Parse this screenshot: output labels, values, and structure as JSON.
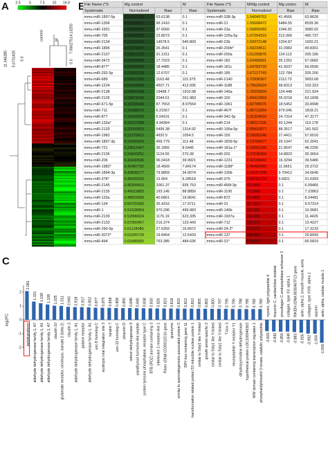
{
  "panel_a": {
    "label": "A",
    "color_scale": [
      "2.5",
      "5",
      "7.5",
      "10",
      "16.9"
    ],
    "columns": [
      "control",
      "M"
    ],
    "column_tree_ticks": [
      "14.13255",
      "7.066275",
      "0.0"
    ],
    "row_tree_ticks": [
      "11.346285",
      "5.6731425",
      "0.0"
    ]
  },
  "panel_b": {
    "label": "B",
    "tables": [
      {
        "header": [
          [
            "File Name (*S",
            "Mg control",
            "M"
          ],
          [
            "Systematic",
            "Normalized",
            "Raw",
            "Raw"
          ]
        ],
        "rows": [
          [
            "mmu-miR-1897-5p",
            "0.00157283",
            "63.6138",
            "0.1"
          ],
          [
            "mmu-miR-1306",
            "0.00104011",
            "96.1416",
            "0.1"
          ],
          [
            "mmu-miR-1931",
            "0.00265545",
            "37.6566",
            "0.1"
          ],
          [
            "mmu-miR-705",
            "0.00420039",
            "23.8073",
            "0.1"
          ],
          [
            "mmu-miR-2134",
            "0.03710143",
            "14578.5",
            "540.809"
          ],
          [
            "mmu-miR-1896",
            "0.00379447",
            "26.3541",
            "0.1"
          ],
          [
            "mmu-miR-2137",
            "0.00321223",
            "31.1311",
            "0.1"
          ],
          [
            "mmu-miR-3472",
            "0.05426085",
            "17.7023",
            "0.1"
          ],
          [
            "mmu-miR-877*",
            "0.05420655",
            "18.4485",
            "0.1"
          ],
          [
            "mmu-miR-292-5p",
            "0.07892218",
            "12.6707",
            "0.1"
          ],
          [
            "mmu-miR-689",
            "0.08501563",
            "1163.48",
            "115.375"
          ],
          [
            "mmu-miR-1224",
            "0.09160664",
            "4507.71",
            "412.935"
          ],
          [
            "mmu-miR-2138",
            "0.09800548",
            "19498.7",
            "1910.98"
          ],
          [
            "mmu-miR-2135",
            "0.09879248",
            "2044.51",
            "201.983"
          ],
          [
            "mmu-miR-671-5p",
            "0.10228349",
            "87.7553",
            "8.97554"
          ],
          [
            "mmu-miR-711",
            "0.16088975",
            "6.21567",
            "0.1"
          ],
          [
            "mmu-miR-877",
            "0.16553555",
            "6.04101",
            "0.1"
          ],
          [
            "mmu-miR-133a*",
            "0.20227999",
            "4.94364",
            "0.1"
          ],
          [
            "mmu-miR-2133",
            "0.20243919",
            "6495.38",
            "1314.92"
          ],
          [
            "mmu-miR-1982",
            "0.21378412",
            "4932.5",
            "1054.5"
          ],
          [
            "mmu-miR-1897-3p",
            "0.22506920",
            "499.779",
            "112.48"
          ],
          [
            "mmu-miR-721",
            "0.23612467",
            "36.1855",
            "8.5445"
          ],
          [
            "mmu-miR-2136",
            "0.24043251",
            "1124.55",
            "270.38"
          ],
          [
            "mmu-miR-206",
            "0.41640696",
            "96.0418",
            "39.9921"
          ],
          [
            "mmu-miR-1982*",
            "0.42487702",
            "18.4569",
            "7.84174"
          ],
          [
            "mmu-miR-1894-3p",
            "0.43696177",
            "79.8859",
            "34.9074"
          ],
          [
            "mmu-miR-378*",
            "0.45042093",
            "13.954",
            "6.28518"
          ],
          [
            "mmu-miR-2145",
            "0.45394416",
            "2061.37",
            "935.753"
          ],
          [
            "mmu-miR-2135",
            "0.46019883",
            "193.145",
            "88.8856"
          ],
          [
            "mmu-miR-133a",
            "0.48822689",
            "40.6861",
            "19.8641"
          ],
          [
            "mmu-miR-134",
            "0.50720393",
            "35.4316",
            "17.9711"
          ],
          [
            "mmu-miR-1",
            "0.51528954",
            "970.296",
            "499.983"
          ],
          [
            "mmu-miR-2139",
            "0.52996024",
            "1176.19",
            "623.335"
          ],
          [
            "mmu-miR-2133",
            "0.57050457",
            "216.374",
            "123.443"
          ],
          [
            "mmu-miR-290-5p",
            "0.61134080",
            "27.6393",
            "16.8972"
          ],
          [
            "mmu-miR-3072*",
            "0.63205729",
            "19.8454",
            "12.5433"
          ],
          [
            "mmu-miR-494",
            "0.63485800",
            "763.385",
            "484.635"
          ]
        ]
      },
      {
        "header": [
          [
            "File Name (*S",
            "M/Mg control",
            "Mg contro",
            "M"
          ],
          [
            "Systematic",
            "Normalized",
            "Raw",
            "Raw"
          ]
        ],
        "rows": [
          [
            "mmu-miR-338-3p",
            "1.54049753",
            "41.4566",
            "63.8628"
          ],
          [
            "mmu-miR-21",
            "1.55698472",
            "5484.55",
            "8539.36"
          ],
          [
            "mmu-miR-23a",
            "1.56809283",
            "2346.81",
            "3680.02"
          ],
          [
            "mmu-miR-125a-5p",
            "1.57254319",
            "312.066",
            "490.737"
          ],
          [
            "mmu-miR-23b",
            "1.59372148",
            "1204.87",
            "1920.21"
          ],
          [
            "mmu-miR-200b*",
            "1.60234511",
            "31.0982",
            "49.8301"
          ],
          [
            "mmu-miR-200a",
            "1.61293876",
            "124.113",
            "200.186"
          ],
          [
            "mmu-miR-182",
            "1.62465891",
            "35.1262",
            "57.0682"
          ],
          [
            "mmu-miR-181c",
            "1.64783739",
            "41.9037",
            "69.0506"
          ],
          [
            "mmu-miR-185",
            "1.67127743",
            "122.784",
            "205.206"
          ],
          [
            "mmu-miR-2140",
            "1.72936307",
            "2112.73",
            "3653.68"
          ],
          [
            "mmu-miR-1188",
            "1.75626024",
            "58.8313",
            "103.323"
          ],
          [
            "mmu-miR-146a",
            "1.78325804",
            "124.448",
            "221.924"
          ],
          [
            "mmu-miR-150",
            "1.80412893",
            "35.0218",
            "63.1838"
          ],
          [
            "mmu-miR-1961",
            "1.82795576",
            "18.5452",
            "33.8998"
          ],
          [
            "mmu-miR-467f",
            "1.85713264",
            "979.045",
            "1818.21"
          ],
          [
            "mmu-miR-342-5p",
            "1.91324818",
            "24.7314",
            "47.3177"
          ],
          [
            "mmu-miR-214",
            "1.98217105",
            "60.1244",
            "119.178"
          ],
          [
            "mmu-miR-199a-5p",
            "2.05431877",
            "88.3517",
            "181.502"
          ],
          [
            "mmu-miR-155",
            "2.10092246",
            "27.4411",
            "57.6516"
          ],
          [
            "mmu-miR-1839-5p",
            "2.13726677",
            "29.1047",
            "62.2041"
          ],
          [
            "mmu-miR-181a-1*",
            "2.20641239",
            "21.8547",
            "48.2205"
          ],
          [
            "mmu-miR-202",
            "2.37638364",
            "14.8823",
            "35.3664"
          ],
          [
            "mmu-miR-1231",
            "2.42190842",
            "16.3294",
            "39.5486"
          ],
          [
            "mmu-miR-1188*",
            "2.45483469",
            "11.9651",
            "29.3722"
          ],
          [
            "mmu-miR-130b",
            "2.54167208",
            "9.70412",
            "24.6646"
          ],
          [
            "mmu-miR-375",
            "3.26781734",
            "9.6821",
            "31.6393"
          ],
          [
            "mmu-miR-466f-3p",
            "60.9465",
            "0.1",
            "6.09465"
          ],
          [
            "mmu-miR-1195",
            "72.2863",
            "0.1",
            "7.22863"
          ],
          [
            "mmu-miR-872",
            "82.4491",
            "0.1",
            "8.24491"
          ],
          [
            "mmu-miR-31",
            "95.7314",
            "0.1",
            "9.57314"
          ],
          [
            "mmu-miR-146b",
            "103.681",
            "0.1",
            "10.3681"
          ],
          [
            "mmu-miR-1937a",
            "114.426",
            "0.1",
            "11.4426"
          ],
          [
            "mmu-miR-712",
            "134.227",
            "0.1",
            "13.4227"
          ],
          [
            "mmu-miR-24-2*",
            "173.133",
            "0.1",
            "17.3133"
          ],
          [
            "mmu-miR-137",
            "298.043",
            "0.1",
            "29.8043"
          ],
          [
            "mmu-miR-31*",
            "665.819",
            "0.1",
            "66.5819"
          ]
        ]
      }
    ]
  },
  "chart_data": {
    "type": "bar",
    "panel_label": "C",
    "y_label": "log2FC",
    "color": "#2e64ad",
    "ylim": [
      -2,
      2.5
    ],
    "yticks": [
      -2,
      -1,
      0,
      1,
      2
    ],
    "categories": [
      "lactotransferrin",
      "aldehyde dehydrogenase family 1, A7",
      "aldehyde dehydrogenase family 1, A1",
      "aldehyde dehydrogenase family 1, A7",
      "claudin 10",
      "glutamate receptor, ionotropic, kainate 2 (beta 2)",
      "claudin 2",
      "aldehyde dehydrogenase family 1, A1",
      "galanin receptor",
      "aldehyde dehydrogenase family 1, A1",
      "unc-5 homolog C",
      "ecotropic viral integration site 3",
      "keratin 7",
      "unc-13 homolog C",
      "ubiquitin D",
      "retinol dehydrogenase 9",
      "parathyroid hormone-like peptide",
      "protein tyrosine phosphatase, receptor type C",
      "BTB (POZ) domain containing 3",
      "interleukin 1 receptor-like 1",
      "Riken cDNA C030012C16 gene",
      "granzyme",
      "similar to spermatogenesis associated protein 5",
      "SRY-box containing gene 11",
      "transformation related protein 53 inducible nuclear protein 1",
      "similar to Ssty1 like Y-linked",
      "growth arrest specific 2",
      "similar to Ssty1 like Y-linked",
      "similar to Ssty1 like Y-linked",
      "T-box 3",
      "neuropeptide Y receptor Y1",
      "dihydropyrimidine dehydrogenase",
      "hypothetical protein LOC100040363",
      "WW domain containing transcription regulator 1",
      "phosphatidylinositol 3 kinase, catalytic polypeptide",
      "myosin, light polypeptide 4",
      "troponin C, cardiac/slow skeletal",
      "procollagen C-endopeptidase enhancer 2",
      "collagen, type XV, alpha 1",
      "RIKEN cDNA 8030467F13 gene",
      "actin, alpha 2, smooth muscle, aorta",
      "collagen, type XVIII, alpha 1",
      "asporin",
      "actin, alpha, cardiac muscle 1"
    ],
    "values": [
      2.081,
      1.321,
      1.199,
      1.108,
      1.025,
      1.011,
      0.943,
      0.918,
      0.917,
      0.902,
      0.877,
      0.875,
      0.868,
      0.858,
      0.85,
      0.848,
      0.84,
      0.838,
      0.83,
      0.826,
      0.823,
      0.818,
      0.815,
      0.812,
      0.81,
      0.805,
      0.802,
      0.8,
      0.797,
      0.795,
      0.79,
      0.788,
      0.785,
      0.782,
      0.78,
      -0.82,
      -0.842,
      -0.856,
      -0.849,
      -0.883,
      -0.926,
      -0.992,
      -1.004,
      -1.658
    ],
    "value_labels": [
      "2.081",
      "1.321",
      "1.199",
      "1.108",
      "1.025",
      "1.011",
      "0.943",
      "0.918",
      "0.917",
      "0.902",
      "0.877",
      "0.875",
      "0.868",
      "0.858",
      "0.850",
      "0.848",
      "0.840",
      "0.838",
      "0.830",
      "0.826",
      "0.823",
      "0.818",
      "0.815",
      "0.812",
      "0.810",
      "0.805",
      "0.802",
      "0.800",
      "0.797",
      "0.795",
      "0.790",
      "0.788",
      "0.785",
      "0.782",
      "0.780",
      "-0.820",
      "-0.842",
      "-0.856",
      "-0.849",
      "-0.883",
      "-0.926",
      "-0.992",
      "-1.004",
      "-1.658"
    ]
  }
}
